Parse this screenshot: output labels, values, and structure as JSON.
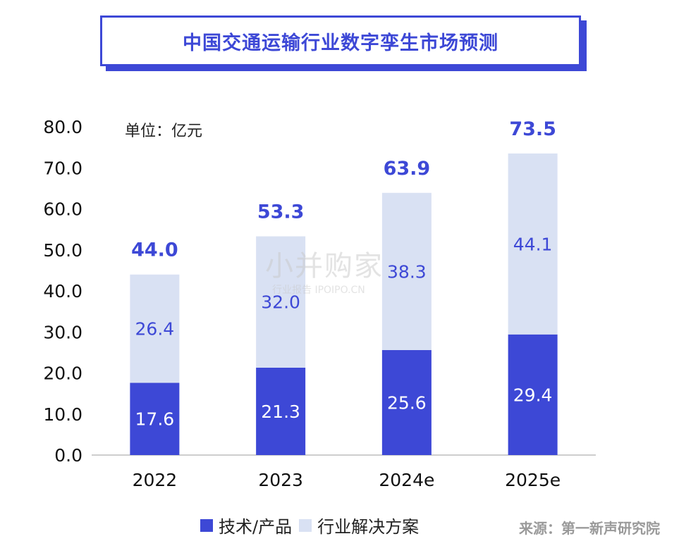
{
  "title": "中国交通运输行业数字孪生市场预测",
  "unit_label": "单位：亿元",
  "source": "来源：第一新声研究院",
  "watermark": {
    "main": "小并购家",
    "sub": "行业报告 IPOIPO.CN"
  },
  "colors": {
    "tech": "#3d48d6",
    "solution": "#d9e1f3",
    "total_label": "#3d48d6",
    "solution_label": "#3d48d6"
  },
  "chart_data": {
    "type": "bar",
    "stacked": true,
    "categories": [
      "2022",
      "2023",
      "2024e",
      "2025e"
    ],
    "series": [
      {
        "name": "技术/产品",
        "values": [
          17.6,
          21.3,
          25.6,
          29.4
        ]
      },
      {
        "name": "行业解决方案",
        "values": [
          26.4,
          32.0,
          38.3,
          44.1
        ]
      }
    ],
    "totals": [
      44.0,
      53.3,
      63.9,
      73.5
    ],
    "ylim": [
      0,
      80
    ],
    "yticks": [
      "0.0",
      "10.0",
      "20.0",
      "30.0",
      "40.0",
      "50.0",
      "60.0",
      "70.0",
      "80.0"
    ],
    "legend_position": "bottom",
    "grid": false
  }
}
